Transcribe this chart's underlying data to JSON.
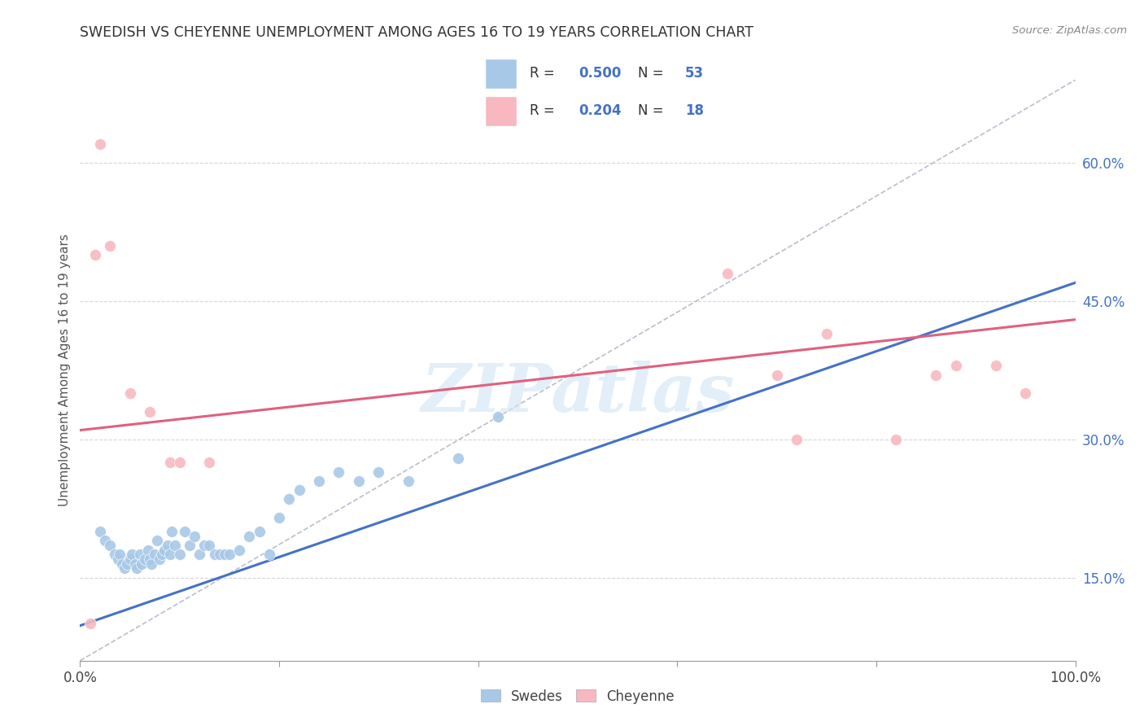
{
  "title": "SWEDISH VS CHEYENNE UNEMPLOYMENT AMONG AGES 16 TO 19 YEARS CORRELATION CHART",
  "source": "Source: ZipAtlas.com",
  "ylabel": "Unemployment Among Ages 16 to 19 years",
  "yticks_labels": [
    "15.0%",
    "30.0%",
    "45.0%",
    "60.0%"
  ],
  "ytick_vals": [
    0.15,
    0.3,
    0.45,
    0.6
  ],
  "xlim": [
    0.0,
    1.0
  ],
  "ylim": [
    0.06,
    0.69
  ],
  "watermark": "ZIPatlas",
  "legend_blue_r": "0.500",
  "legend_blue_n": "53",
  "legend_pink_r": "0.204",
  "legend_pink_n": "18",
  "legend_label_swedes": "Swedes",
  "legend_label_cheyenne": "Cheyenne",
  "blue_color": "#a8c8e8",
  "pink_color": "#f8b8c0",
  "blue_line_color": "#4472c4",
  "pink_line_color": "#e06080",
  "dashed_line_color": "#b0b8c8",
  "blue_scatter_x": [
    0.02,
    0.025,
    0.03,
    0.035,
    0.038,
    0.04,
    0.042,
    0.045,
    0.047,
    0.05,
    0.052,
    0.055,
    0.057,
    0.06,
    0.062,
    0.065,
    0.068,
    0.07,
    0.072,
    0.075,
    0.077,
    0.08,
    0.082,
    0.085,
    0.088,
    0.09,
    0.092,
    0.095,
    0.1,
    0.105,
    0.11,
    0.115,
    0.12,
    0.125,
    0.13,
    0.135,
    0.14,
    0.145,
    0.15,
    0.16,
    0.17,
    0.18,
    0.19,
    0.2,
    0.21,
    0.22,
    0.24,
    0.26,
    0.28,
    0.3,
    0.33,
    0.38,
    0.42
  ],
  "blue_scatter_y": [
    0.2,
    0.19,
    0.185,
    0.175,
    0.17,
    0.175,
    0.165,
    0.16,
    0.165,
    0.17,
    0.175,
    0.165,
    0.16,
    0.175,
    0.165,
    0.17,
    0.18,
    0.17,
    0.165,
    0.175,
    0.19,
    0.17,
    0.175,
    0.18,
    0.185,
    0.175,
    0.2,
    0.185,
    0.175,
    0.2,
    0.185,
    0.195,
    0.175,
    0.185,
    0.185,
    0.175,
    0.175,
    0.175,
    0.175,
    0.18,
    0.195,
    0.2,
    0.175,
    0.215,
    0.235,
    0.245,
    0.255,
    0.265,
    0.255,
    0.265,
    0.255,
    0.28,
    0.325
  ],
  "pink_scatter_x": [
    0.01,
    0.015,
    0.02,
    0.03,
    0.05,
    0.07,
    0.09,
    0.1,
    0.13,
    0.65,
    0.7,
    0.72,
    0.75,
    0.82,
    0.86,
    0.88,
    0.92,
    0.95
  ],
  "pink_scatter_y": [
    0.1,
    0.5,
    0.62,
    0.51,
    0.35,
    0.33,
    0.275,
    0.275,
    0.275,
    0.48,
    0.37,
    0.3,
    0.415,
    0.3,
    0.37,
    0.38,
    0.38,
    0.35
  ],
  "blue_line_x0": 0.0,
  "blue_line_x1": 1.0,
  "blue_line_y0": 0.098,
  "blue_line_y1": 0.47,
  "pink_line_x0": 0.0,
  "pink_line_x1": 1.0,
  "pink_line_y0": 0.31,
  "pink_line_y1": 0.43,
  "dashed_line_x": [
    0.0,
    1.0
  ],
  "dashed_line_y": [
    0.06,
    0.69
  ]
}
